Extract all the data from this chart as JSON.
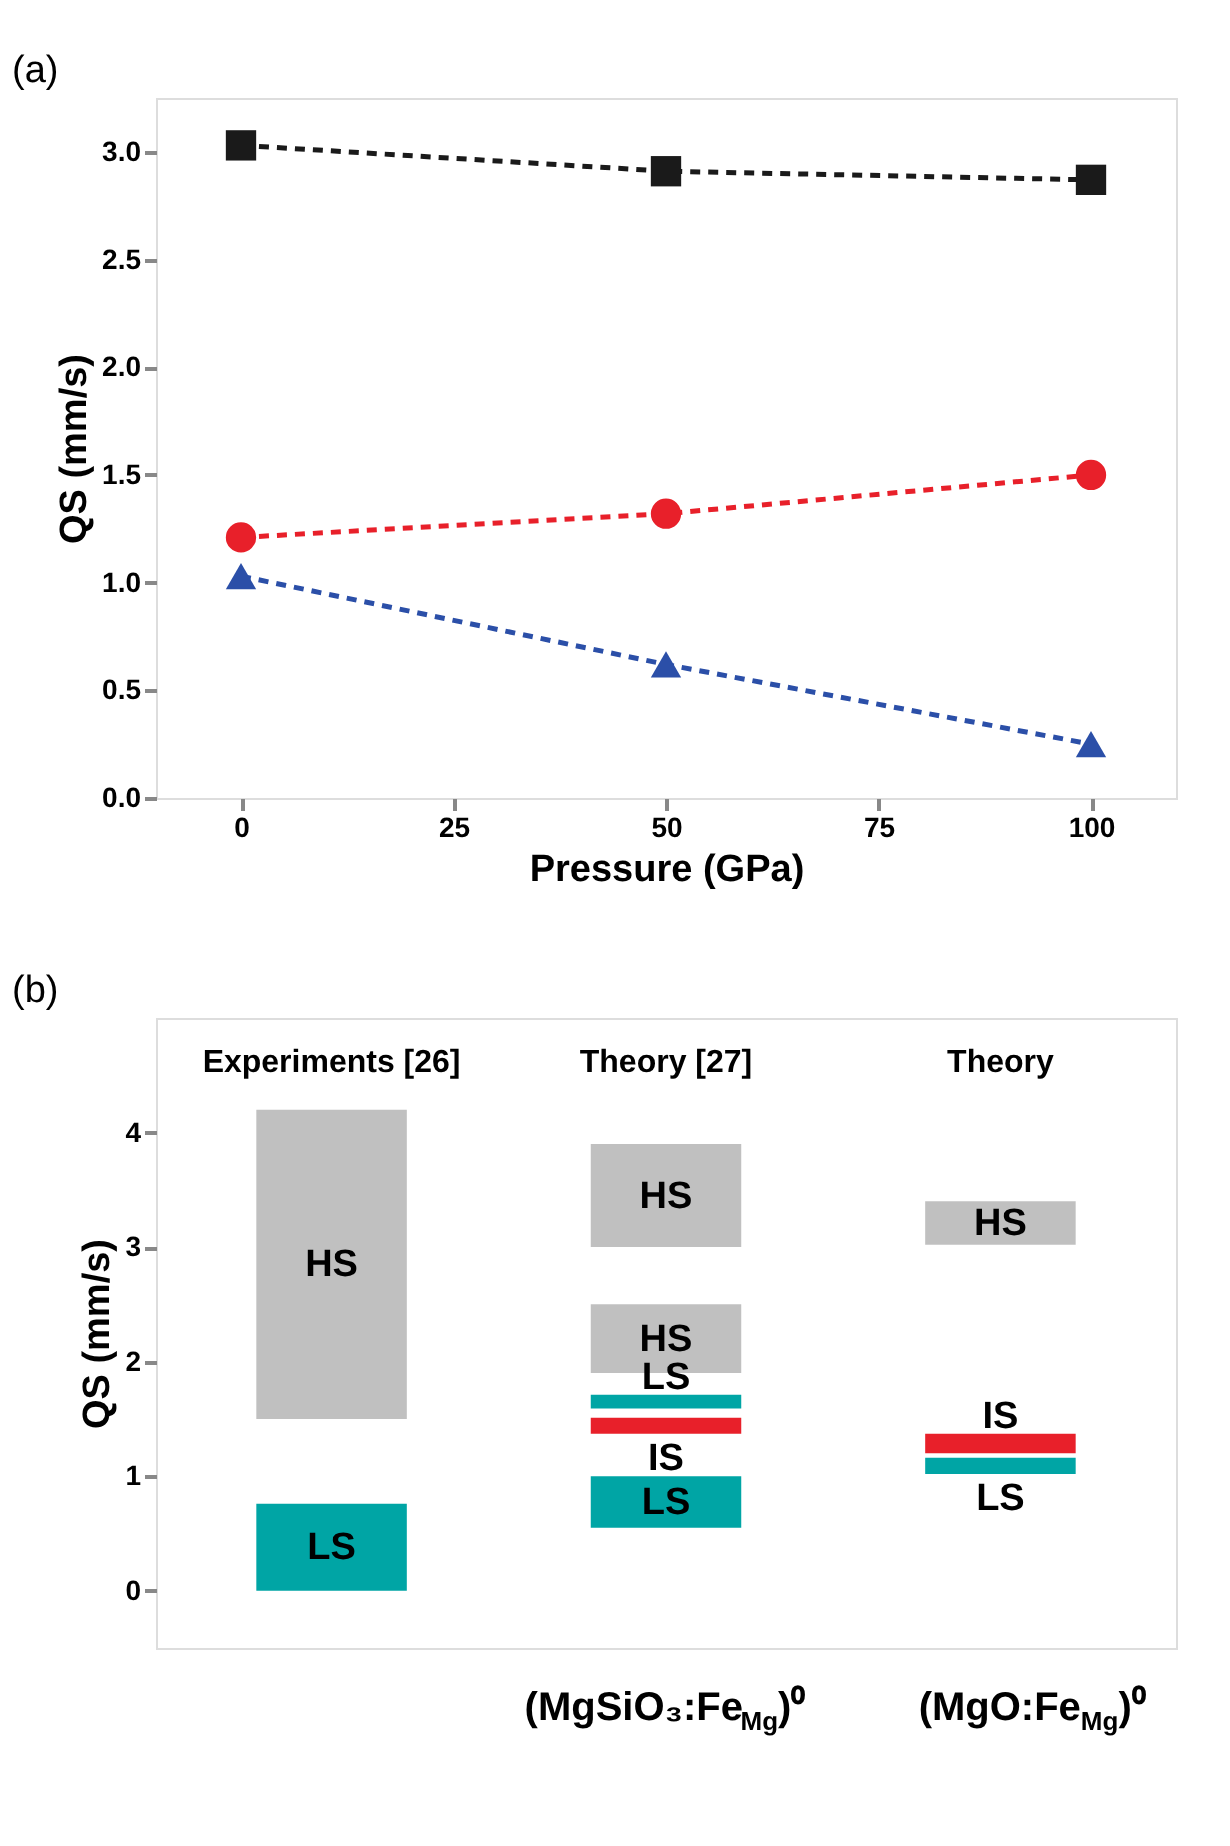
{
  "chart_data": [
    {
      "type": "line",
      "x": [
        0,
        50,
        100
      ],
      "xlabel": "Pressure (GPa)",
      "ylabel": "QS (mm/s)",
      "xlim": [
        -10,
        110
      ],
      "ylim": [
        0,
        3.25
      ],
      "xticks": [
        0,
        25,
        50,
        75,
        100
      ],
      "yticks": [
        {
          "value": 0,
          "label": "0.0"
        },
        {
          "value": 0.5,
          "label": "0.5"
        },
        {
          "value": 1,
          "label": "1.0"
        },
        {
          "value": 1.5,
          "label": "1.5"
        },
        {
          "value": 2,
          "label": "2.0"
        },
        {
          "value": 2.5,
          "label": "2.5"
        },
        {
          "value": 3,
          "label": "3.0"
        }
      ],
      "line_style": "dashed",
      "grid": false,
      "series": [
        {
          "color": "#1a1a1a",
          "marker": "square",
          "values": [
            3.03,
            2.91,
            2.87
          ]
        },
        {
          "color": "#e8202a",
          "marker": "circle",
          "values": [
            1.21,
            1.32,
            1.5
          ]
        },
        {
          "color": "#2b4fa8",
          "marker": "triangle",
          "values": [
            1.03,
            0.62,
            0.25
          ]
        }
      ],
      "annotations": [
        "(a)"
      ]
    },
    {
      "type": "bar",
      "categories": [
        "Experiments [26]",
        "Theory [27]",
        "Theory"
      ],
      "ylabel": "QS (mm/s)",
      "ylim": [
        -0.5,
        5
      ],
      "yticks": [
        0,
        1,
        2,
        3,
        4
      ],
      "grid": false,
      "series": [
        {
          "color": "#c0c0c0",
          "base": [
            1.5,
            3.0,
            3.02
          ],
          "values": [
            2.7,
            0.9,
            0.38
          ],
          "value_labels": [
            "HS",
            "HS",
            "HS"
          ]
        },
        {
          "color": "#c0c0c0",
          "base": [
            null,
            1.9,
            null
          ],
          "values": [
            null,
            0.6,
            null
          ],
          "value_labels": [
            null,
            "HS",
            null
          ]
        },
        {
          "color": "#00a5a5",
          "base": [
            0,
            0.55,
            1.02
          ],
          "values": [
            0.76,
            0.45,
            0.14
          ],
          "value_labels": [
            "LS",
            "LS",
            "LS"
          ]
        },
        {
          "color": "#00a5a5",
          "base": [
            null,
            1.59,
            null
          ],
          "values": [
            null,
            0.12,
            null
          ],
          "value_labels": [
            null,
            "LS",
            null
          ]
        },
        {
          "color": "#e8202a",
          "base": [
            null,
            1.37,
            1.2
          ],
          "values": [
            null,
            0.14,
            0.17
          ],
          "value_labels": [
            null,
            "IS",
            "IS"
          ]
        }
      ],
      "annotations": [
        "(b)",
        "(MgSiO₃:Fe$_{Mg}$)⁰",
        "(MgO:Fe$_{Mg}$)⁰"
      ]
    }
  ]
}
